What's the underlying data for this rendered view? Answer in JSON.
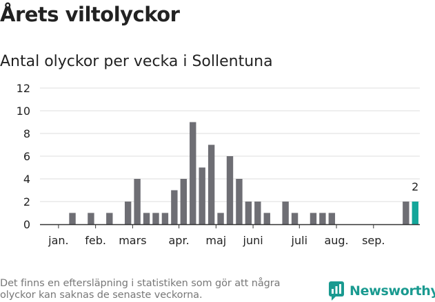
{
  "title": "Årets viltolyckor",
  "subtitle": "Antal olyckor per vecka i Sollentuna",
  "footnote": "Det finns en eftersläpning i statistiken som gör att några olyckor kan saknas de senaste veckorna.",
  "brand": {
    "name": "Newsworthy",
    "icon": "newsworthy-logo-icon"
  },
  "colors": {
    "bar": "#6e6e74",
    "highlight": "#13a69a",
    "grid": "#dddddd",
    "axis": "#333333",
    "brand": "#1a9a90"
  },
  "chart_data": {
    "type": "bar",
    "title": "Antal olyckor per vecka i Sollentuna",
    "xlabel": "",
    "ylabel": "",
    "ylim": [
      0,
      12
    ],
    "yticks": [
      "0",
      "2",
      "4",
      "6",
      "8",
      "10",
      "12"
    ],
    "weeks": [
      1,
      2,
      3,
      4,
      5,
      6,
      7,
      8,
      9,
      10,
      11,
      12,
      13,
      14,
      15,
      16,
      17,
      18,
      19,
      20,
      21,
      22,
      23,
      24,
      25,
      26,
      27,
      28,
      29,
      30,
      31,
      32,
      33,
      34,
      35,
      36,
      37,
      38,
      39,
      40,
      41
    ],
    "values": [
      0,
      0,
      0,
      1,
      0,
      1,
      0,
      1,
      0,
      2,
      4,
      1,
      1,
      1,
      3,
      4,
      9,
      5,
      7,
      1,
      6,
      4,
      2,
      2,
      1,
      0,
      2,
      1,
      0,
      1,
      1,
      1,
      0,
      0,
      0,
      0,
      0,
      0,
      0,
      2,
      2
    ],
    "highlight_index": 40,
    "highlight_label": "2",
    "months": [
      {
        "label": "jan.",
        "week": 2.5
      },
      {
        "label": "feb.",
        "week": 6.5
      },
      {
        "label": "mars",
        "week": 10.5
      },
      {
        "label": "apr.",
        "week": 15.5
      },
      {
        "label": "maj",
        "week": 19.5
      },
      {
        "label": "juni",
        "week": 23.5
      },
      {
        "label": "juli",
        "week": 28.5
      },
      {
        "label": "aug.",
        "week": 32.5
      },
      {
        "label": "sep.",
        "week": 36.5
      }
    ]
  }
}
